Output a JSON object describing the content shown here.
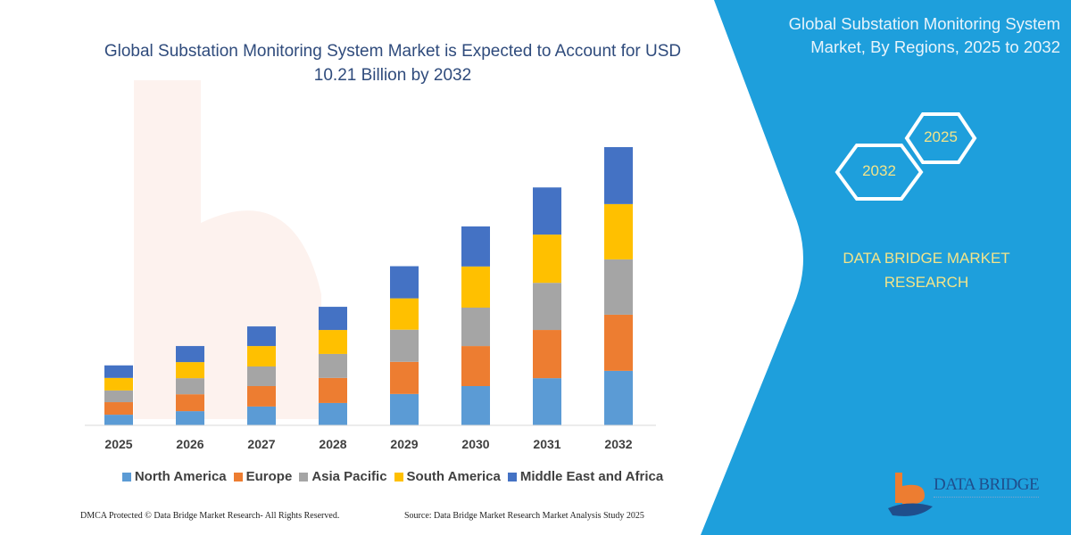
{
  "header": {
    "title_line1": "Global Substation Monitoring System Market is Expected to Account for USD",
    "title_line2": "10.21 Billion by 2032"
  },
  "side_panel": {
    "title_line1": "Global Substation Monitoring System",
    "title_line2": "Market, By Regions, 2025 to 2032",
    "hex_start": "2025",
    "hex_end": "2032",
    "brand_line1": "DATA BRIDGE MARKET",
    "brand_line2": "RESEARCH",
    "logo_text": "DATA BRIDGE",
    "panel_color": "#1E9FDC"
  },
  "footer": {
    "left": "DMCA Protected © Data Bridge Market Research-  All Rights Reserved.",
    "right": "Source: Data Bridge Market Research  Market Analysis Study 2025"
  },
  "chart_data": {
    "type": "bar",
    "stacked": true,
    "title": "Global Substation Monitoring System Market is Expected to Account for USD 10.21 Billion by 2032",
    "xlabel": "",
    "ylabel": "",
    "grid": false,
    "legend_position": "bottom",
    "categories": [
      "2025",
      "2026",
      "2027",
      "2028",
      "2029",
      "2030",
      "2031",
      "2032"
    ],
    "series": [
      {
        "name": "North America",
        "color": "#5B9BD5",
        "values": [
          0.39,
          0.52,
          0.69,
          0.82,
          1.15,
          1.44,
          1.73,
          2.0
        ]
      },
      {
        "name": "Europe",
        "color": "#ED7D31",
        "values": [
          0.46,
          0.62,
          0.75,
          0.92,
          1.18,
          1.47,
          1.77,
          2.06
        ]
      },
      {
        "name": "Asia Pacific",
        "color": "#A5A5A5",
        "values": [
          0.43,
          0.59,
          0.72,
          0.88,
          1.18,
          1.41,
          1.73,
          2.03
        ]
      },
      {
        "name": "South America",
        "color": "#FFC000",
        "values": [
          0.46,
          0.59,
          0.75,
          0.88,
          1.15,
          1.51,
          1.77,
          2.03
        ]
      },
      {
        "name": "Middle East and Africa",
        "color": "#4472C4",
        "values": [
          0.46,
          0.59,
          0.72,
          0.85,
          1.18,
          1.47,
          1.73,
          2.09
        ]
      }
    ]
  }
}
